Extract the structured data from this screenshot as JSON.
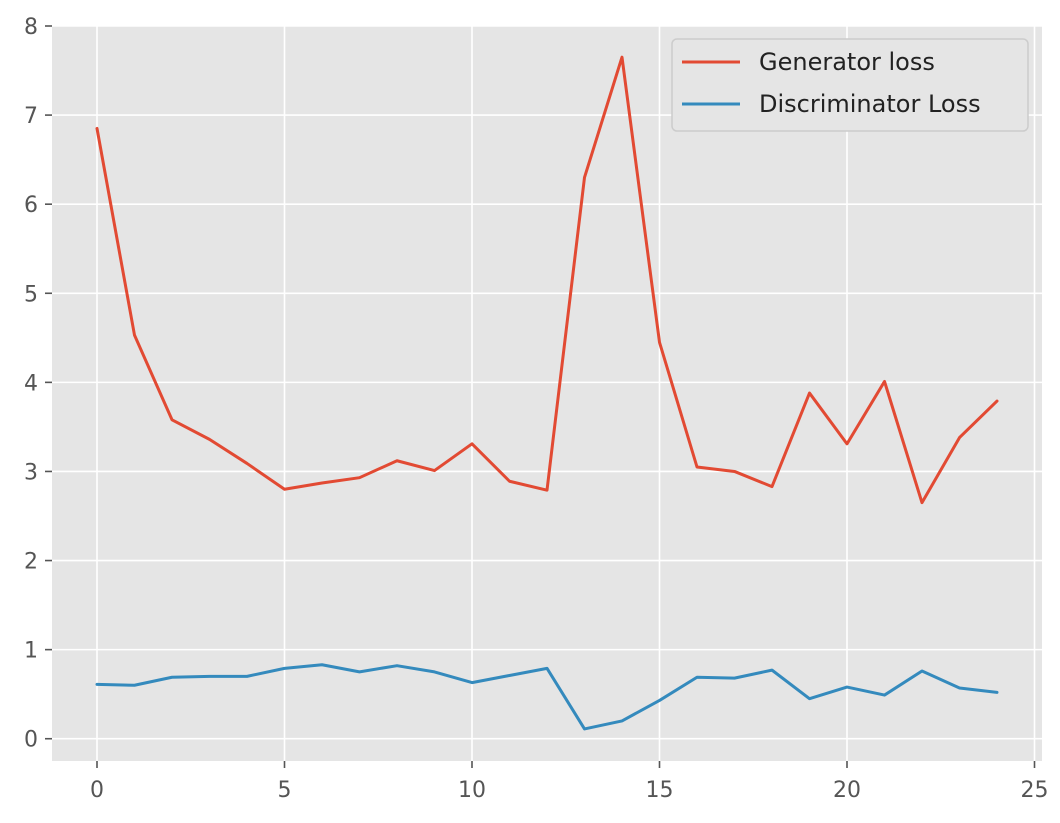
{
  "chart_data": {
    "type": "line",
    "title": "",
    "xlabel": "",
    "ylabel": "",
    "xlim": [
      -1.2,
      25.2
    ],
    "ylim": [
      -0.25,
      8
    ],
    "x": [
      0,
      1,
      2,
      3,
      4,
      5,
      6,
      7,
      8,
      9,
      10,
      11,
      12,
      13,
      14,
      15,
      16,
      17,
      18,
      19,
      20,
      21,
      22,
      23,
      24
    ],
    "xticks": [
      0,
      5,
      10,
      15,
      20,
      25
    ],
    "yticks": [
      0,
      1,
      2,
      3,
      4,
      5,
      6,
      7,
      8
    ],
    "grid": true,
    "legend_position": "top-right",
    "series": [
      {
        "name": "Generator loss",
        "color": "#E24A33",
        "values": [
          6.85,
          4.53,
          3.58,
          3.36,
          3.09,
          2.8,
          2.87,
          2.93,
          3.12,
          3.01,
          3.31,
          2.89,
          2.79,
          6.3,
          7.65,
          4.45,
          3.05,
          3.0,
          2.83,
          3.88,
          3.31,
          4.01,
          2.65,
          3.38,
          3.79
        ]
      },
      {
        "name": "Discriminator Loss",
        "color": "#348ABD",
        "values": [
          0.61,
          0.6,
          0.69,
          0.7,
          0.7,
          0.79,
          0.83,
          0.75,
          0.82,
          0.75,
          0.63,
          0.71,
          0.79,
          0.11,
          0.2,
          0.43,
          0.69,
          0.68,
          0.77,
          0.45,
          0.58,
          0.49,
          0.76,
          0.57,
          0.52
        ]
      }
    ]
  },
  "style": {
    "plot_background": "#E5E5E5",
    "grid_color": "#FFFFFF",
    "tick_color": "#555555",
    "legend_background": "#E5E5E5",
    "legend_border": "#CCCCCC"
  }
}
